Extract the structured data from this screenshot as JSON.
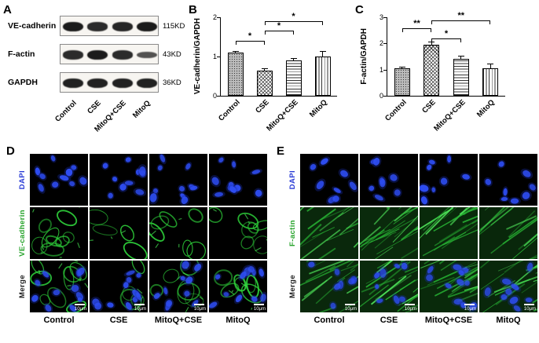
{
  "panels": {
    "a": {
      "label": "A"
    },
    "b": {
      "label": "B"
    },
    "c": {
      "label": "C"
    },
    "d": {
      "label": "D"
    },
    "e": {
      "label": "E"
    }
  },
  "blot": {
    "lanes": [
      "Control",
      "CSE",
      "MitoQ+CSE",
      "MitoQ"
    ],
    "rows": [
      {
        "protein": "VE-cadherin",
        "size": "115KD",
        "bands": [
          0.95,
          0.8,
          0.85,
          0.95
        ]
      },
      {
        "protein": "F-actin",
        "size": "43KD",
        "bands": [
          0.8,
          0.95,
          0.8,
          0.45
        ]
      },
      {
        "protein": "GAPDH",
        "size": "36KD",
        "bands": [
          0.9,
          0.9,
          0.9,
          0.9
        ]
      }
    ]
  },
  "chart_data": [
    {
      "type": "bar",
      "panel": "B",
      "title": "",
      "xlabel": "",
      "ylabel": "VE-cadherin/GAPDH",
      "categories": [
        "Control",
        "CSE",
        "MitoQ+CSE",
        "MitoQ"
      ],
      "values": [
        1.1,
        0.65,
        0.9,
        1.0
      ],
      "errors": [
        0.03,
        0.03,
        0.04,
        0.12
      ],
      "ylim": [
        0,
        2
      ],
      "yticks": [
        0,
        1,
        2
      ],
      "grid": false,
      "patterns": [
        "dots",
        "crosshatch",
        "hlines",
        "vlines"
      ],
      "significance": [
        {
          "from": 0,
          "to": 1,
          "label": "*",
          "y": 0.3
        },
        {
          "from": 1,
          "to": 2,
          "label": "*",
          "y": 0.17
        },
        {
          "from": 1,
          "to": 3,
          "label": "*",
          "y": 0.045
        }
      ]
    },
    {
      "type": "bar",
      "panel": "C",
      "title": "",
      "xlabel": "",
      "ylabel": "F-actin/GAPDH",
      "categories": [
        "Control",
        "CSE",
        "MitoQ+CSE",
        "MitoQ"
      ],
      "values": [
        1.05,
        1.95,
        1.4,
        1.05
      ],
      "errors": [
        0.04,
        0.08,
        0.1,
        0.15
      ],
      "ylim": [
        0,
        3
      ],
      "yticks": [
        0,
        1,
        2,
        3
      ],
      "grid": false,
      "patterns": [
        "dots",
        "crosshatch",
        "hlines",
        "vlines"
      ],
      "significance": [
        {
          "from": 0,
          "to": 1,
          "label": "**",
          "y": 0.14
        },
        {
          "from": 1,
          "to": 2,
          "label": "*",
          "y": 0.27
        },
        {
          "from": 1,
          "to": 3,
          "label": "**",
          "y": 0.04
        }
      ]
    }
  ],
  "microscopy": {
    "d": {
      "rows": [
        {
          "label": "DAPI",
          "color": "#2a3cd6",
          "type": "dapi"
        },
        {
          "label": "VE-cadherin",
          "color": "#27a32b",
          "type": "mesh"
        },
        {
          "label": "Merge",
          "color": "#222222",
          "type": "merge-mesh"
        }
      ],
      "columns": [
        "Control",
        "CSE",
        "MitoQ+CSE",
        "MitoQ"
      ],
      "density": [
        1.0,
        0.45,
        0.8,
        0.9
      ],
      "scale_label": "10μm"
    },
    "e": {
      "rows": [
        {
          "label": "DAPI",
          "color": "#2a3cd6",
          "type": "dapi"
        },
        {
          "label": "F-actin",
          "color": "#27a32b",
          "type": "fiber"
        },
        {
          "label": "Merge",
          "color": "#222222",
          "type": "merge-fiber"
        }
      ],
      "columns": [
        "Control",
        "CSE",
        "MitoQ+CSE",
        "MitoQ"
      ],
      "density": [
        0.8,
        1.0,
        0.95,
        0.75
      ],
      "scale_label": "10μm"
    }
  }
}
